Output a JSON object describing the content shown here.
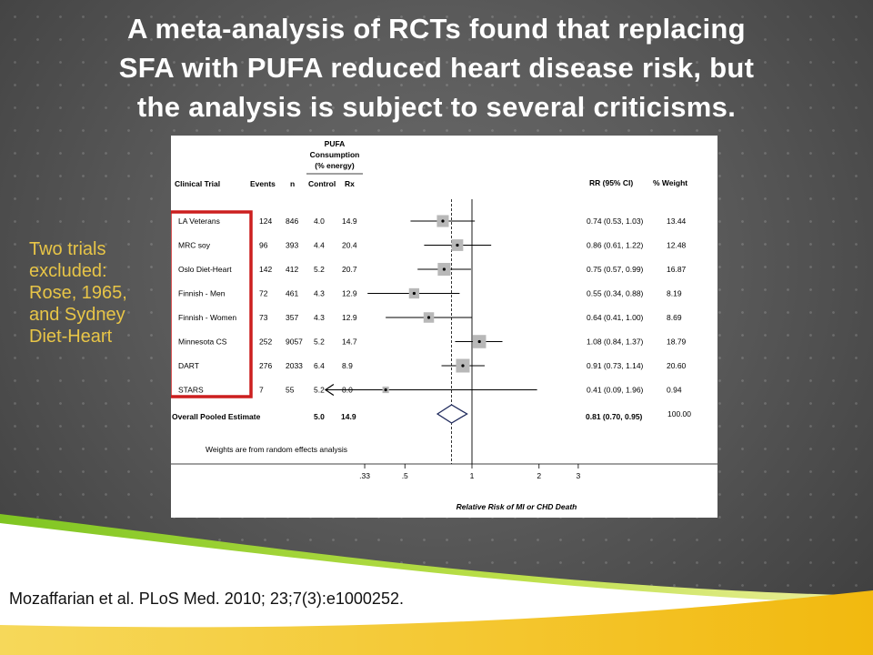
{
  "slide": {
    "title_lines": [
      "A meta-analysis of RCTs found that replacing",
      "SFA with PUFA reduced heart disease risk, but",
      "the analysis is subject to several criticisms."
    ],
    "side_note_lines": [
      "Two trials",
      "excluded:",
      "Rose, 1965,",
      "and Sydney",
      "Diet-Heart"
    ],
    "side_note_color": "#e8c547",
    "citation": "Mozaffarian et al. PLoS Med. 2010; 23;7(3):e1000252.",
    "highlight_color": "#cc1f1f"
  },
  "chart_data": {
    "type": "forest",
    "header": {
      "pufa_lines": [
        "PUFA",
        "Consumption",
        "(% energy)"
      ],
      "clinical_trial": "Clinical Trial",
      "events": "Events",
      "n": "n",
      "control": "Control",
      "rx": "Rx",
      "rr": "RR  (95% CI)",
      "weight": "% Weight"
    },
    "trials": [
      {
        "name": "LA Veterans",
        "events": "124",
        "n": "846",
        "control": "4.0",
        "rx": "14.9",
        "rr": 0.74,
        "lo": 0.53,
        "hi": 1.03,
        "rr_text": "0.74 (0.53, 1.03)",
        "weight": "13.44",
        "w": 13.44
      },
      {
        "name": "MRC soy",
        "events": "96",
        "n": "393",
        "control": "4.4",
        "rx": "20.4",
        "rr": 0.86,
        "lo": 0.61,
        "hi": 1.22,
        "rr_text": "0.86 (0.61, 1.22)",
        "weight": "12.48",
        "w": 12.48
      },
      {
        "name": "Oslo Diet-Heart",
        "events": "142",
        "n": "412",
        "control": "5.2",
        "rx": "20.7",
        "rr": 0.75,
        "lo": 0.57,
        "hi": 0.99,
        "rr_text": "0.75 (0.57, 0.99)",
        "weight": "16.87",
        "w": 16.87
      },
      {
        "name": "Finnish - Men",
        "events": "72",
        "n": "461",
        "control": "4.3",
        "rx": "12.9",
        "rr": 0.55,
        "lo": 0.34,
        "hi": 0.88,
        "rr_text": "0.55 (0.34, 0.88)",
        "weight": "8.19",
        "w": 8.19
      },
      {
        "name": "Finnish - Women",
        "events": "73",
        "n": "357",
        "control": "4.3",
        "rx": "12.9",
        "rr": 0.64,
        "lo": 0.41,
        "hi": 1.0,
        "rr_text": "0.64 (0.41, 1.00)",
        "weight": "8.69",
        "w": 8.69
      },
      {
        "name": "Minnesota CS",
        "events": "252",
        "n": "9057",
        "control": "5.2",
        "rx": "14.7",
        "rr": 1.08,
        "lo": 0.84,
        "hi": 1.37,
        "rr_text": "1.08 (0.84, 1.37)",
        "weight": "18.79",
        "w": 18.79
      },
      {
        "name": "DART",
        "events": "276",
        "n": "2033",
        "control": "6.4",
        "rx": "8.9",
        "rr": 0.91,
        "lo": 0.73,
        "hi": 1.14,
        "rr_text": "0.91 (0.73, 1.14)",
        "weight": "20.60",
        "w": 20.6
      },
      {
        "name": "STARS",
        "events": "7",
        "n": "55",
        "control": "5.2",
        "rx": "8.0",
        "rr": 0.41,
        "lo": 0.09,
        "hi": 1.96,
        "rr_text": "0.41 (0.09, 1.96)",
        "weight": "0.94",
        "w": 0.94
      }
    ],
    "overall": {
      "label": "Overall Pooled Estimate",
      "control": "5.0",
      "rx": "14.9",
      "rr": 0.81,
      "lo": 0.7,
      "hi": 0.95,
      "rr_text": "0.81 (0.70, 0.95)",
      "weight": "100.00"
    },
    "weights_note": "Weights are from random effects analysis",
    "x_axis": {
      "scale": "log",
      "ticks": [
        0.33,
        0.5,
        1,
        2,
        3
      ],
      "tick_labels": [
        ".33",
        ".5",
        "1",
        "2",
        "3"
      ],
      "label": "Relative Risk of MI or CHD Death",
      "reference_line": 1,
      "dashed_line": 0.81
    }
  }
}
